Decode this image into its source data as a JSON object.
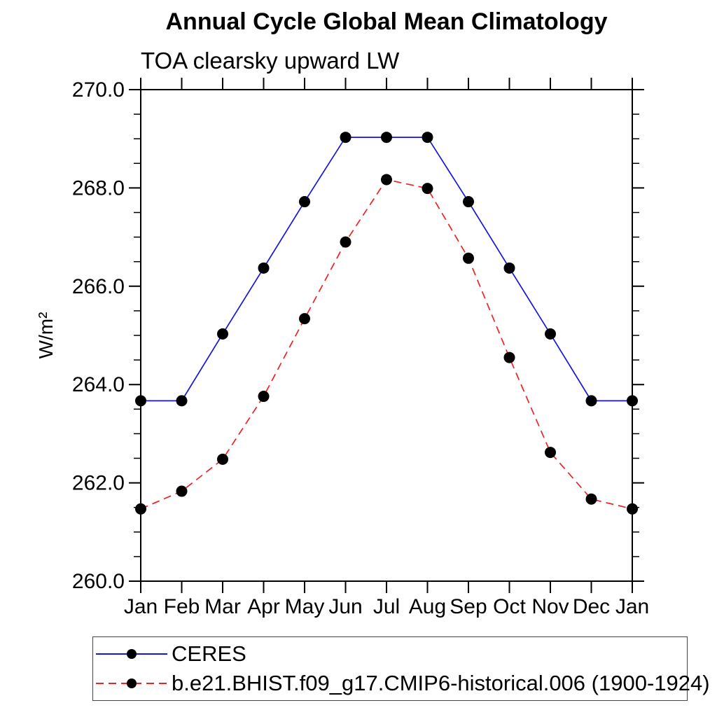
{
  "header": {
    "title": "Annual Cycle Global Mean Climatology",
    "subtitle": "TOA clearsky upward LW"
  },
  "chart_data": {
    "type": "line",
    "title": "Annual Cycle Global Mean Climatology",
    "subtitle": "TOA clearsky upward LW",
    "xlabel": "",
    "ylabel": "W/m²",
    "categories": [
      "Jan",
      "Feb",
      "Mar",
      "Apr",
      "May",
      "Jun",
      "Jul",
      "Aug",
      "Sep",
      "Oct",
      "Nov",
      "Dec",
      "Jan"
    ],
    "ylim": [
      260.0,
      270.0
    ],
    "ytick_major": [
      260.0,
      262.0,
      264.0,
      266.0,
      268.0,
      270.0
    ],
    "ytick_labels": [
      "260.0",
      "262.0",
      "264.0",
      "266.0",
      "268.0",
      "270.0"
    ],
    "ytick_minor_step": 0.5,
    "grid": false,
    "legend_position": "bottom-left",
    "frame_color": "#000000",
    "marker": "filled-circle",
    "marker_color": "#000000",
    "series": [
      {
        "name": "CERES",
        "color": "#1515dd",
        "line_style": "solid",
        "values": [
          263.67,
          263.67,
          265.03,
          266.37,
          267.72,
          269.03,
          269.03,
          269.03,
          267.72,
          266.37,
          265.03,
          263.67,
          263.67
        ]
      },
      {
        "name": "b.e21.BHIST.f09_g17.CMIP6-historical.006 (1900-1924)",
        "color": "#ee2222",
        "line_style": "dashed",
        "values": [
          261.47,
          261.83,
          262.48,
          263.76,
          265.34,
          266.9,
          268.17,
          267.99,
          266.57,
          264.55,
          262.62,
          261.67,
          261.47
        ]
      }
    ]
  }
}
